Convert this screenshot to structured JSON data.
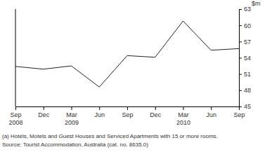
{
  "chart_data": {
    "type": "line",
    "y_label": "$m",
    "categories": [
      "Sep 2008",
      "Dec",
      "Mar 2009",
      "Jun",
      "Sep",
      "Dec",
      "Mar 2010",
      "Jun",
      "Sep"
    ],
    "values": [
      52.4,
      51.9,
      52.5,
      48.6,
      54.4,
      54.1,
      60.8,
      55.4,
      55.7
    ],
    "color": "#222222",
    "ylim": [
      45,
      63
    ],
    "yticks": [
      45,
      48,
      51,
      54,
      57,
      60,
      63
    ],
    "grid": false,
    "annotations": [
      "(a) Hotels, Motels and Guest Houses and Serviced Apartments with 15 or more rooms.",
      "Source: Tourist Accommodation, Australia (cat. no. 8635.0)"
    ]
  }
}
